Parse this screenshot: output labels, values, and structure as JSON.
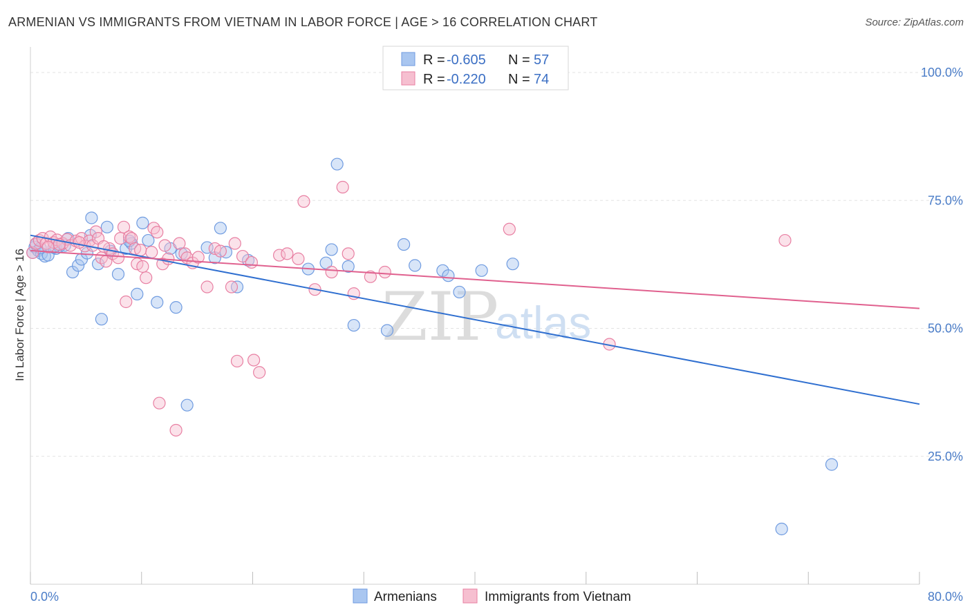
{
  "title": "ARMENIAN VS IMMIGRANTS FROM VIETNAM IN LABOR FORCE | AGE > 16 CORRELATION CHART",
  "source": "Source: ZipAtlas.com",
  "watermark": {
    "zip": "ZIP",
    "atlas": "atlas"
  },
  "legend_box": {
    "rows": [
      {
        "r_label": "R =",
        "r_value": "-0.605",
        "n_label": "N =",
        "n_value": "57"
      },
      {
        "r_label": "R =",
        "r_value": "-0.220",
        "n_label": "N =",
        "n_value": "74"
      }
    ]
  },
  "chart_data": {
    "type": "scatter",
    "xlabel": "",
    "ylabel": "In Labor Force | Age > 16",
    "xlim": [
      0,
      80
    ],
    "ylim": [
      0,
      105
    ],
    "x_tick_labels": [
      "0.0%",
      "80.0%"
    ],
    "y_ticks": [
      25,
      50,
      75,
      100
    ],
    "y_tick_labels": [
      "25.0%",
      "50.0%",
      "75.0%",
      "100.0%"
    ],
    "grid": true,
    "legend_position": "bottom",
    "series": [
      {
        "name": "Armenians",
        "color": "#6f9be0",
        "fill": "#a9c6f0",
        "r": -0.605,
        "n": 57,
        "trend": {
          "x": [
            0,
            80
          ],
          "y": [
            68.2,
            35.2
          ]
        },
        "points": [
          [
            0.2,
            64.8
          ],
          [
            0.4,
            65.9
          ],
          [
            0.5,
            66.4
          ],
          [
            0.7,
            65.2
          ],
          [
            1.0,
            64.6
          ],
          [
            1.3,
            64.1
          ],
          [
            1.6,
            64.3
          ],
          [
            2.3,
            65.6
          ],
          [
            2.6,
            66.0
          ],
          [
            3.1,
            66.2
          ],
          [
            3.4,
            67.6
          ],
          [
            3.8,
            61.0
          ],
          [
            4.3,
            62.3
          ],
          [
            4.6,
            63.5
          ],
          [
            5.1,
            64.7
          ],
          [
            5.4,
            68.2
          ],
          [
            5.5,
            71.6
          ],
          [
            6.1,
            62.6
          ],
          [
            6.4,
            51.8
          ],
          [
            6.9,
            69.8
          ],
          [
            7.2,
            65.1
          ],
          [
            7.9,
            60.6
          ],
          [
            8.6,
            65.6
          ],
          [
            9.1,
            66.6
          ],
          [
            9.6,
            56.7
          ],
          [
            10.1,
            70.6
          ],
          [
            10.6,
            67.2
          ],
          [
            11.4,
            55.1
          ],
          [
            12.6,
            65.6
          ],
          [
            13.1,
            54.1
          ],
          [
            13.6,
            64.6
          ],
          [
            14.1,
            35.0
          ],
          [
            15.9,
            65.8
          ],
          [
            16.6,
            63.8
          ],
          [
            17.1,
            69.6
          ],
          [
            17.6,
            64.9
          ],
          [
            18.6,
            58.1
          ],
          [
            19.6,
            63.3
          ],
          [
            25.0,
            61.6
          ],
          [
            26.6,
            62.8
          ],
          [
            27.1,
            65.4
          ],
          [
            27.6,
            82.1
          ],
          [
            28.6,
            62.1
          ],
          [
            29.1,
            50.6
          ],
          [
            32.1,
            49.6
          ],
          [
            33.6,
            66.4
          ],
          [
            34.6,
            62.3
          ],
          [
            37.1,
            61.3
          ],
          [
            37.6,
            60.3
          ],
          [
            38.6,
            57.1
          ],
          [
            40.6,
            61.3
          ],
          [
            43.4,
            62.6
          ],
          [
            72.1,
            23.4
          ],
          [
            67.6,
            10.8
          ],
          [
            0.9,
            65.7
          ],
          [
            2.1,
            65.8
          ],
          [
            8.9,
            67.1
          ]
        ]
      },
      {
        "name": "Immigrants from Vietnam",
        "color": "#e87fa2",
        "fill": "#f6bfd0",
        "r": -0.22,
        "n": 74,
        "trend": {
          "x": [
            0,
            80
          ],
          "y": [
            65.2,
            53.9
          ]
        },
        "points": [
          [
            0.2,
            64.8
          ],
          [
            0.5,
            66.6
          ],
          [
            0.8,
            67.2
          ],
          [
            1.1,
            67.6
          ],
          [
            1.4,
            66.6
          ],
          [
            1.8,
            67.9
          ],
          [
            2.1,
            66.8
          ],
          [
            2.4,
            67.3
          ],
          [
            2.9,
            66.6
          ],
          [
            3.3,
            67.4
          ],
          [
            3.6,
            66.2
          ],
          [
            4.1,
            67.1
          ],
          [
            4.6,
            67.6
          ],
          [
            4.9,
            66.1
          ],
          [
            5.3,
            67.1
          ],
          [
            5.6,
            66.2
          ],
          [
            5.9,
            68.9
          ],
          [
            6.1,
            67.6
          ],
          [
            6.4,
            63.8
          ],
          [
            6.8,
            63.1
          ],
          [
            7.1,
            65.6
          ],
          [
            7.4,
            64.6
          ],
          [
            7.9,
            63.8
          ],
          [
            8.1,
            67.6
          ],
          [
            8.4,
            69.8
          ],
          [
            8.6,
            55.2
          ],
          [
            8.9,
            67.9
          ],
          [
            9.1,
            67.6
          ],
          [
            9.4,
            65.6
          ],
          [
            9.6,
            62.6
          ],
          [
            10.1,
            62.1
          ],
          [
            10.4,
            59.9
          ],
          [
            10.9,
            64.9
          ],
          [
            11.1,
            69.6
          ],
          [
            11.4,
            68.8
          ],
          [
            11.6,
            35.4
          ],
          [
            11.9,
            62.6
          ],
          [
            12.4,
            63.6
          ],
          [
            13.1,
            30.1
          ],
          [
            13.4,
            66.6
          ],
          [
            13.9,
            64.6
          ],
          [
            14.1,
            63.8
          ],
          [
            14.6,
            62.8
          ],
          [
            15.9,
            58.1
          ],
          [
            16.6,
            65.6
          ],
          [
            17.1,
            65.1
          ],
          [
            18.1,
            58.1
          ],
          [
            18.4,
            66.6
          ],
          [
            18.6,
            43.6
          ],
          [
            19.1,
            64.1
          ],
          [
            20.1,
            43.8
          ],
          [
            20.6,
            41.4
          ],
          [
            22.4,
            64.3
          ],
          [
            23.1,
            64.6
          ],
          [
            24.1,
            63.6
          ],
          [
            24.6,
            74.8
          ],
          [
            25.6,
            57.6
          ],
          [
            27.1,
            61.0
          ],
          [
            28.1,
            77.6
          ],
          [
            28.6,
            64.6
          ],
          [
            29.1,
            56.8
          ],
          [
            30.6,
            60.1
          ],
          [
            31.9,
            61.0
          ],
          [
            43.1,
            69.4
          ],
          [
            52.1,
            46.9
          ],
          [
            67.9,
            67.2
          ],
          [
            1.6,
            65.9
          ],
          [
            2.6,
            66.4
          ],
          [
            4.4,
            66.8
          ],
          [
            6.6,
            66.0
          ],
          [
            9.9,
            65.3
          ],
          [
            12.1,
            66.2
          ],
          [
            15.1,
            63.9
          ],
          [
            19.9,
            62.9
          ]
        ]
      }
    ]
  },
  "bottom_legend": [
    {
      "label": "Armenians"
    },
    {
      "label": "Immigrants from Vietnam"
    }
  ]
}
